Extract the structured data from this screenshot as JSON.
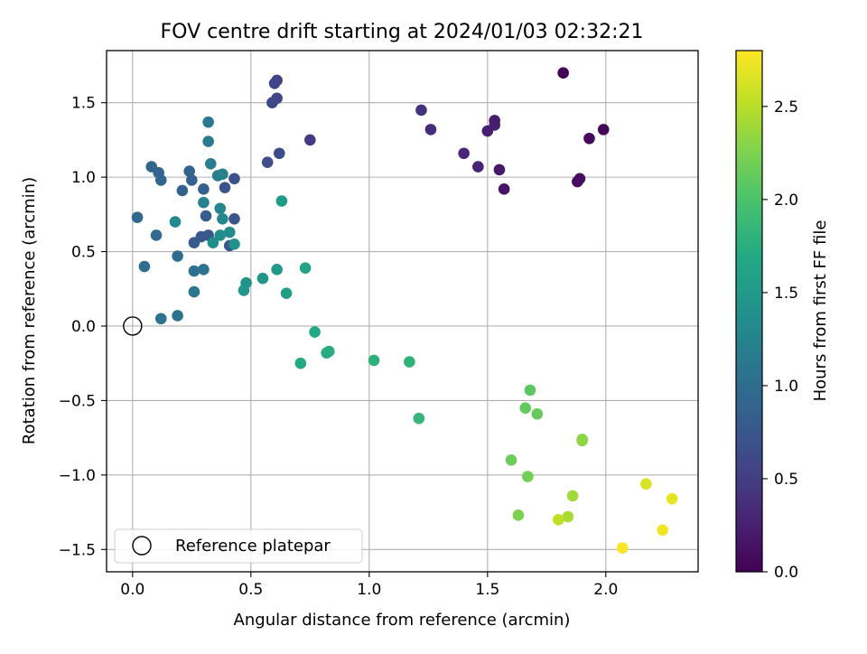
{
  "chart_data": {
    "type": "scatter",
    "title": "FOV centre drift starting at 2024/01/03 02:32:21",
    "xlabel": "Angular distance from reference (arcmin)",
    "ylabel": "Rotation from reference (arcmin)",
    "xlim": [
      -0.11,
      2.39
    ],
    "ylim": [
      -1.65,
      1.85
    ],
    "xticks": [
      0.0,
      0.5,
      1.0,
      1.5,
      2.0
    ],
    "xtick_labels": [
      "0.0",
      "0.5",
      "1.0",
      "1.5",
      "2.0"
    ],
    "yticks": [
      -1.5,
      -1.0,
      -0.5,
      0.0,
      0.5,
      1.0,
      1.5
    ],
    "ytick_labels": [
      "−1.5",
      "−1.0",
      "−0.5",
      "0.0",
      "0.5",
      "1.0",
      "1.5"
    ],
    "grid": true,
    "legend": {
      "position": "lower-left",
      "entries": [
        "Reference platepar"
      ]
    },
    "colorbar": {
      "label": "Hours from first FF file",
      "colormap": "viridis",
      "range": [
        0.0,
        2.8
      ],
      "ticks": [
        0.0,
        0.5,
        1.0,
        1.5,
        2.0,
        2.5
      ],
      "tick_labels": [
        "0.0",
        "0.5",
        "1.0",
        "1.5",
        "2.0",
        "2.5"
      ]
    },
    "reference_point": {
      "name": "Reference platepar",
      "x": 0.0,
      "y": 0.0
    },
    "series": [
      {
        "points": [
          {
            "x": 1.82,
            "y": 1.7,
            "c": 0.02
          },
          {
            "x": 1.99,
            "y": 1.32,
            "c": 0.05
          },
          {
            "x": 1.93,
            "y": 1.26,
            "c": 0.06
          },
          {
            "x": 1.89,
            "y": 0.99,
            "c": 0.09
          },
          {
            "x": 1.88,
            "y": 0.97,
            "c": 0.1
          },
          {
            "x": 1.57,
            "y": 0.92,
            "c": 0.16
          },
          {
            "x": 1.55,
            "y": 1.05,
            "c": 0.18
          },
          {
            "x": 1.53,
            "y": 1.38,
            "c": 0.21
          },
          {
            "x": 1.53,
            "y": 1.35,
            "c": 0.22
          },
          {
            "x": 1.5,
            "y": 1.31,
            "c": 0.24
          },
          {
            "x": 1.46,
            "y": 1.07,
            "c": 0.27
          },
          {
            "x": 1.4,
            "y": 1.16,
            "c": 0.31
          },
          {
            "x": 1.26,
            "y": 1.32,
            "c": 0.36
          },
          {
            "x": 1.22,
            "y": 1.45,
            "c": 0.4
          },
          {
            "x": 0.75,
            "y": 1.25,
            "c": 0.48
          },
          {
            "x": 0.61,
            "y": 1.65,
            "c": 0.54
          },
          {
            "x": 0.6,
            "y": 1.63,
            "c": 0.56
          },
          {
            "x": 0.61,
            "y": 1.53,
            "c": 0.58
          },
          {
            "x": 0.59,
            "y": 1.5,
            "c": 0.6
          },
          {
            "x": 0.62,
            "y": 1.16,
            "c": 0.63
          },
          {
            "x": 0.57,
            "y": 1.1,
            "c": 0.66
          },
          {
            "x": 0.43,
            "y": 0.99,
            "c": 0.7
          },
          {
            "x": 0.39,
            "y": 0.93,
            "c": 0.72
          },
          {
            "x": 0.43,
            "y": 0.72,
            "c": 0.73
          },
          {
            "x": 0.41,
            "y": 0.54,
            "c": 0.75
          },
          {
            "x": 0.32,
            "y": 0.61,
            "c": 0.77
          },
          {
            "x": 0.29,
            "y": 0.6,
            "c": 0.78
          },
          {
            "x": 0.26,
            "y": 0.56,
            "c": 0.8
          },
          {
            "x": 0.31,
            "y": 0.74,
            "c": 0.82
          },
          {
            "x": 0.3,
            "y": 0.92,
            "c": 0.84
          },
          {
            "x": 0.25,
            "y": 0.98,
            "c": 0.86
          },
          {
            "x": 0.24,
            "y": 1.04,
            "c": 0.87
          },
          {
            "x": 0.21,
            "y": 0.91,
            "c": 0.88
          },
          {
            "x": 0.11,
            "y": 1.03,
            "c": 0.9
          },
          {
            "x": 0.12,
            "y": 0.98,
            "c": 0.91
          },
          {
            "x": 0.08,
            "y": 1.07,
            "c": 0.92
          },
          {
            "x": 0.02,
            "y": 0.73,
            "c": 0.94
          },
          {
            "x": 0.1,
            "y": 0.61,
            "c": 0.96
          },
          {
            "x": 0.05,
            "y": 0.4,
            "c": 0.98
          },
          {
            "x": 0.19,
            "y": 0.47,
            "c": 1.0
          },
          {
            "x": 0.26,
            "y": 0.37,
            "c": 1.02
          },
          {
            "x": 0.3,
            "y": 0.38,
            "c": 1.05
          },
          {
            "x": 0.12,
            "y": 0.05,
            "c": 1.06
          },
          {
            "x": 0.19,
            "y": 0.07,
            "c": 1.08
          },
          {
            "x": 0.26,
            "y": 0.23,
            "c": 1.1
          },
          {
            "x": 0.32,
            "y": 1.37,
            "c": 1.13
          },
          {
            "x": 0.32,
            "y": 1.24,
            "c": 1.16
          },
          {
            "x": 0.33,
            "y": 1.09,
            "c": 1.18
          },
          {
            "x": 0.36,
            "y": 1.01,
            "c": 1.2
          },
          {
            "x": 0.38,
            "y": 1.02,
            "c": 1.22
          },
          {
            "x": 0.3,
            "y": 0.83,
            "c": 1.24
          },
          {
            "x": 0.37,
            "y": 0.79,
            "c": 1.27
          },
          {
            "x": 0.38,
            "y": 0.72,
            "c": 1.29
          },
          {
            "x": 0.18,
            "y": 0.7,
            "c": 1.31
          },
          {
            "x": 0.41,
            "y": 0.63,
            "c": 1.33
          },
          {
            "x": 0.37,
            "y": 0.61,
            "c": 1.35
          },
          {
            "x": 0.34,
            "y": 0.56,
            "c": 1.37
          },
          {
            "x": 0.43,
            "y": 0.55,
            "c": 1.4
          },
          {
            "x": 0.48,
            "y": 0.29,
            "c": 1.42
          },
          {
            "x": 0.47,
            "y": 0.24,
            "c": 1.44
          },
          {
            "x": 0.55,
            "y": 0.32,
            "c": 1.47
          },
          {
            "x": 0.61,
            "y": 0.38,
            "c": 1.5
          },
          {
            "x": 0.63,
            "y": 0.84,
            "c": 1.52
          },
          {
            "x": 0.65,
            "y": 0.22,
            "c": 1.55
          },
          {
            "x": 0.73,
            "y": 0.39,
            "c": 1.62
          },
          {
            "x": 0.77,
            "y": -0.04,
            "c": 1.68
          },
          {
            "x": 0.71,
            "y": -0.25,
            "c": 1.7
          },
          {
            "x": 0.82,
            "y": -0.18,
            "c": 1.72
          },
          {
            "x": 0.83,
            "y": -0.17,
            "c": 1.74
          },
          {
            "x": 1.02,
            "y": -0.23,
            "c": 1.78
          },
          {
            "x": 1.17,
            "y": -0.24,
            "c": 1.8
          },
          {
            "x": 1.21,
            "y": -0.62,
            "c": 1.84
          },
          {
            "x": 1.68,
            "y": -0.43,
            "c": 2.08
          },
          {
            "x": 1.66,
            "y": -0.55,
            "c": 2.12
          },
          {
            "x": 1.71,
            "y": -0.59,
            "c": 2.14
          },
          {
            "x": 1.6,
            "y": -0.9,
            "c": 2.17
          },
          {
            "x": 1.67,
            "y": -1.01,
            "c": 2.2
          },
          {
            "x": 1.63,
            "y": -1.27,
            "c": 2.25
          },
          {
            "x": 1.9,
            "y": -0.76,
            "c": 2.3
          },
          {
            "x": 1.9,
            "y": -0.77,
            "c": 2.32
          },
          {
            "x": 1.86,
            "y": -1.14,
            "c": 2.4
          },
          {
            "x": 1.84,
            "y": -1.28,
            "c": 2.44
          },
          {
            "x": 1.8,
            "y": -1.3,
            "c": 2.52
          },
          {
            "x": 2.17,
            "y": -1.06,
            "c": 2.64
          },
          {
            "x": 2.28,
            "y": -1.16,
            "c": 2.7
          },
          {
            "x": 2.24,
            "y": -1.37,
            "c": 2.74
          },
          {
            "x": 2.07,
            "y": -1.49,
            "c": 2.78
          }
        ]
      }
    ]
  }
}
